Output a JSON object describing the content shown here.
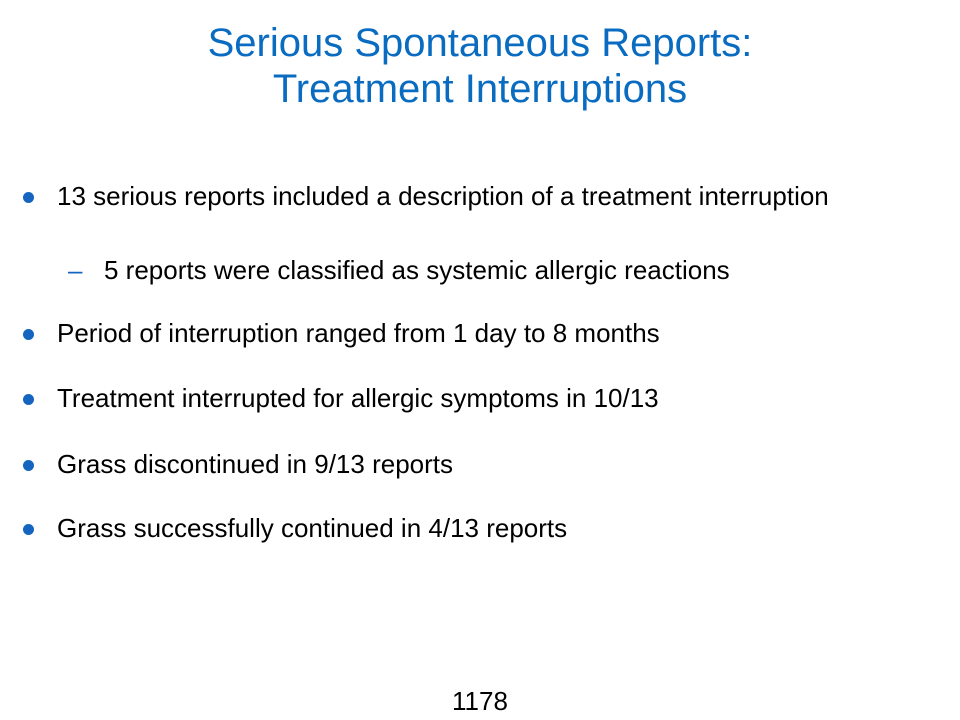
{
  "slide": {
    "title_line1": "Serious Spontaneous Reports:",
    "title_line2": "Treatment Interruptions",
    "bullets": [
      {
        "text": "13 serious reports included a description of a treatment interruption",
        "sub": [
          "5 reports were classified as systemic allergic reactions"
        ]
      },
      {
        "text": "Period of interruption ranged from 1 day to 8 months"
      },
      {
        "text": "Treatment interrupted for allergic symptoms in 10/13"
      },
      {
        "text": "Grass discontinued in 9/13 reports"
      },
      {
        "text": "Grass successfully continued in 4/13 reports"
      }
    ],
    "sub_marker": "–",
    "page_number": "1178"
  },
  "colors": {
    "title": "#0a6cc0",
    "bullet": "#1565c0",
    "text": "#000000",
    "background": "#ffffff"
  }
}
